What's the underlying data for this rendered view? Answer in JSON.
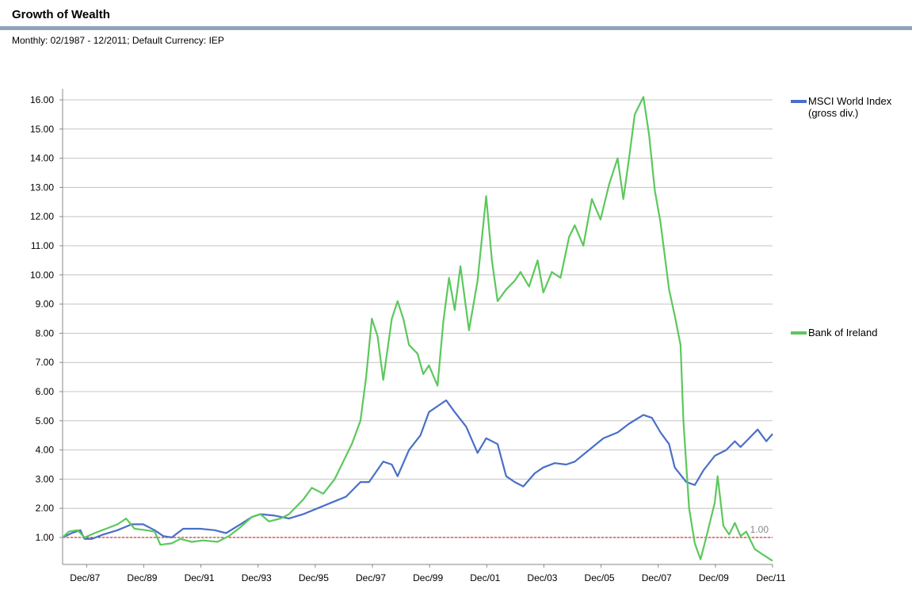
{
  "header": {
    "title": "Growth of Wealth",
    "subtitle": "Monthly: 02/1987 - 12/2011; Default Currency: IEP"
  },
  "chart_data": {
    "type": "line",
    "title": "Growth of Wealth",
    "xlabel": "",
    "ylabel": "",
    "ylim": [
      0.2,
      16.4
    ],
    "xlim": [
      "Feb 1987",
      "Dec 2011"
    ],
    "y_ticks": [
      "1.00",
      "2.00",
      "3.00",
      "4.00",
      "5.00",
      "6.00",
      "7.00",
      "8.00",
      "9.00",
      "10.00",
      "11.00",
      "12.00",
      "13.00",
      "14.00",
      "15.00",
      "16.00"
    ],
    "x_ticks": [
      "Dec/87",
      "Dec/89",
      "Dec/91",
      "Dec/93",
      "Dec/95",
      "Dec/97",
      "Dec/99",
      "Dec/01",
      "Dec/03",
      "Dec/05",
      "Dec/07",
      "Dec/09",
      "Dec/11"
    ],
    "x_tick_years": [
      1987.92,
      1989.92,
      1991.92,
      1993.92,
      1995.92,
      1997.92,
      1999.92,
      2001.92,
      2003.92,
      2005.92,
      2007.92,
      2009.92,
      2011.92
    ],
    "grid": true,
    "legend_position": "right",
    "reference_line": {
      "value": 1.0,
      "label": "1.00",
      "color": "#cc0000"
    },
    "series": [
      {
        "name": "MSCI World Index (gross div.)",
        "color": "#4a6fc8",
        "points": [
          [
            1987.08,
            1.0
          ],
          [
            1987.4,
            1.15
          ],
          [
            1987.7,
            1.25
          ],
          [
            1987.85,
            0.95
          ],
          [
            1988.1,
            0.95
          ],
          [
            1988.5,
            1.1
          ],
          [
            1989.0,
            1.25
          ],
          [
            1989.5,
            1.45
          ],
          [
            1989.9,
            1.45
          ],
          [
            1990.3,
            1.25
          ],
          [
            1990.6,
            1.05
          ],
          [
            1990.9,
            1.0
          ],
          [
            1991.3,
            1.3
          ],
          [
            1991.9,
            1.3
          ],
          [
            1992.4,
            1.25
          ],
          [
            1992.8,
            1.15
          ],
          [
            1993.3,
            1.45
          ],
          [
            1993.7,
            1.7
          ],
          [
            1994.0,
            1.8
          ],
          [
            1994.5,
            1.75
          ],
          [
            1995.0,
            1.65
          ],
          [
            1995.5,
            1.8
          ],
          [
            1996.0,
            2.0
          ],
          [
            1996.5,
            2.2
          ],
          [
            1997.0,
            2.4
          ],
          [
            1997.5,
            2.9
          ],
          [
            1997.8,
            2.9
          ],
          [
            1998.3,
            3.6
          ],
          [
            1998.6,
            3.5
          ],
          [
            1998.8,
            3.1
          ],
          [
            1999.2,
            4.0
          ],
          [
            1999.6,
            4.5
          ],
          [
            1999.9,
            5.3
          ],
          [
            2000.2,
            5.5
          ],
          [
            2000.5,
            5.7
          ],
          [
            2000.8,
            5.3
          ],
          [
            2001.2,
            4.8
          ],
          [
            2001.6,
            3.9
          ],
          [
            2001.9,
            4.4
          ],
          [
            2002.3,
            4.2
          ],
          [
            2002.6,
            3.1
          ],
          [
            2002.9,
            2.9
          ],
          [
            2003.2,
            2.75
          ],
          [
            2003.6,
            3.2
          ],
          [
            2003.9,
            3.4
          ],
          [
            2004.3,
            3.55
          ],
          [
            2004.7,
            3.5
          ],
          [
            2005.0,
            3.6
          ],
          [
            2005.5,
            4.0
          ],
          [
            2006.0,
            4.4
          ],
          [
            2006.5,
            4.6
          ],
          [
            2006.9,
            4.9
          ],
          [
            2007.4,
            5.2
          ],
          [
            2007.7,
            5.1
          ],
          [
            2008.0,
            4.6
          ],
          [
            2008.3,
            4.2
          ],
          [
            2008.5,
            3.4
          ],
          [
            2008.9,
            2.9
          ],
          [
            2009.2,
            2.8
          ],
          [
            2009.5,
            3.3
          ],
          [
            2009.9,
            3.8
          ],
          [
            2010.3,
            4.0
          ],
          [
            2010.6,
            4.3
          ],
          [
            2010.8,
            4.1
          ],
          [
            2011.0,
            4.3
          ],
          [
            2011.4,
            4.7
          ],
          [
            2011.7,
            4.3
          ],
          [
            2011.92,
            4.55
          ]
        ]
      },
      {
        "name": "Bank of Ireland",
        "color": "#5cc85c",
        "points": [
          [
            1987.08,
            1.0
          ],
          [
            1987.3,
            1.2
          ],
          [
            1987.6,
            1.25
          ],
          [
            1987.85,
            1.0
          ],
          [
            1988.2,
            1.15
          ],
          [
            1988.6,
            1.3
          ],
          [
            1989.0,
            1.45
          ],
          [
            1989.3,
            1.65
          ],
          [
            1989.6,
            1.3
          ],
          [
            1990.0,
            1.25
          ],
          [
            1990.3,
            1.2
          ],
          [
            1990.5,
            0.75
          ],
          [
            1990.9,
            0.8
          ],
          [
            1991.2,
            0.95
          ],
          [
            1991.6,
            0.85
          ],
          [
            1992.0,
            0.9
          ],
          [
            1992.5,
            0.85
          ],
          [
            1992.9,
            1.05
          ],
          [
            1993.3,
            1.35
          ],
          [
            1993.7,
            1.7
          ],
          [
            1994.0,
            1.8
          ],
          [
            1994.3,
            1.55
          ],
          [
            1994.7,
            1.65
          ],
          [
            1995.0,
            1.8
          ],
          [
            1995.5,
            2.3
          ],
          [
            1995.8,
            2.7
          ],
          [
            1996.2,
            2.5
          ],
          [
            1996.6,
            3.0
          ],
          [
            1996.9,
            3.6
          ],
          [
            1997.2,
            4.2
          ],
          [
            1997.5,
            5.0
          ],
          [
            1997.7,
            6.5
          ],
          [
            1997.9,
            8.5
          ],
          [
            1998.1,
            7.9
          ],
          [
            1998.3,
            6.4
          ],
          [
            1998.6,
            8.5
          ],
          [
            1998.8,
            9.1
          ],
          [
            1999.0,
            8.5
          ],
          [
            1999.2,
            7.6
          ],
          [
            1999.5,
            7.3
          ],
          [
            1999.7,
            6.6
          ],
          [
            1999.9,
            6.9
          ],
          [
            2000.2,
            6.2
          ],
          [
            2000.4,
            8.4
          ],
          [
            2000.6,
            9.9
          ],
          [
            2000.8,
            8.8
          ],
          [
            2001.0,
            10.3
          ],
          [
            2001.3,
            8.1
          ],
          [
            2001.6,
            9.8
          ],
          [
            2001.9,
            12.7
          ],
          [
            2002.1,
            10.5
          ],
          [
            2002.3,
            9.1
          ],
          [
            2002.6,
            9.5
          ],
          [
            2002.9,
            9.8
          ],
          [
            2003.1,
            10.1
          ],
          [
            2003.4,
            9.6
          ],
          [
            2003.7,
            10.5
          ],
          [
            2003.9,
            9.4
          ],
          [
            2004.2,
            10.1
          ],
          [
            2004.5,
            9.9
          ],
          [
            2004.8,
            11.3
          ],
          [
            2005.0,
            11.7
          ],
          [
            2005.3,
            11.0
          ],
          [
            2005.6,
            12.6
          ],
          [
            2005.9,
            11.9
          ],
          [
            2006.2,
            13.1
          ],
          [
            2006.5,
            14.0
          ],
          [
            2006.7,
            12.6
          ],
          [
            2006.9,
            14.0
          ],
          [
            2007.1,
            15.5
          ],
          [
            2007.4,
            16.1
          ],
          [
            2007.6,
            14.8
          ],
          [
            2007.8,
            12.9
          ],
          [
            2008.0,
            11.8
          ],
          [
            2008.3,
            9.5
          ],
          [
            2008.5,
            8.6
          ],
          [
            2008.7,
            7.6
          ],
          [
            2008.8,
            5.0
          ],
          [
            2009.0,
            2.0
          ],
          [
            2009.2,
            0.8
          ],
          [
            2009.4,
            0.25
          ],
          [
            2009.6,
            1.0
          ],
          [
            2009.9,
            2.2
          ],
          [
            2010.0,
            3.1
          ],
          [
            2010.2,
            1.4
          ],
          [
            2010.4,
            1.1
          ],
          [
            2010.6,
            1.5
          ],
          [
            2010.8,
            1.05
          ],
          [
            2011.0,
            1.2
          ],
          [
            2011.3,
            0.6
          ],
          [
            2011.6,
            0.4
          ],
          [
            2011.92,
            0.2
          ]
        ]
      }
    ]
  },
  "legend": [
    {
      "label": "MSCI World Index (gross div.)",
      "color": "#4a6fc8"
    },
    {
      "label": "Bank of Ireland",
      "color": "#5cc85c"
    }
  ]
}
